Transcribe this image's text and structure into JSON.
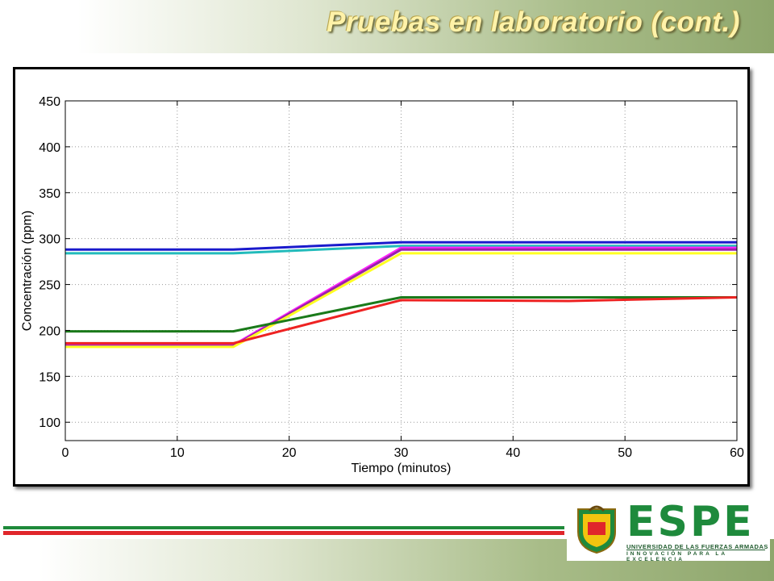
{
  "slide": {
    "title": "Pruebas en laboratorio (cont.)"
  },
  "logo": {
    "wordmark": "ESPE",
    "subtitle": "UNIVERSIDAD DE LAS FUERZAS ARMADAS",
    "tagline": "INNOVACIÓN PARA LA EXCELENCIA",
    "colors": {
      "green": "#1e8a3c",
      "red": "#e0262b"
    }
  },
  "chart_data": {
    "type": "line",
    "title": "",
    "xlabel": "Tiempo (minutos)",
    "ylabel": "Concentración (ppm)",
    "xlim": [
      0,
      60
    ],
    "ylim": [
      80,
      450
    ],
    "xticks": [
      0,
      10,
      20,
      30,
      40,
      50,
      60
    ],
    "yticks": [
      100,
      150,
      200,
      250,
      300,
      350,
      400,
      450
    ],
    "grid": true,
    "legend": "none",
    "series": [
      {
        "color": "#1a1acc",
        "x": [
          0,
          15,
          30,
          60
        ],
        "y": [
          288,
          288,
          296,
          296
        ]
      },
      {
        "color": "#22bbbb",
        "x": [
          0,
          15,
          30,
          60
        ],
        "y": [
          284,
          284,
          292,
          292
        ]
      },
      {
        "color": "#ff22ff",
        "x": [
          0,
          15,
          30,
          60
        ],
        "y": [
          184,
          184,
          290,
          290
        ]
      },
      {
        "color": "#9922aa",
        "x": [
          0,
          15,
          30,
          60
        ],
        "y": [
          183,
          183,
          288,
          288
        ]
      },
      {
        "color": "#ffff22",
        "x": [
          0,
          15,
          30,
          60
        ],
        "y": [
          182,
          182,
          284,
          284
        ]
      },
      {
        "color": "#1a7a1a",
        "x": [
          0,
          15,
          30,
          60
        ],
        "y": [
          199,
          199,
          236,
          236
        ]
      },
      {
        "color": "#ee2222",
        "x": [
          0,
          15,
          30,
          45,
          60
        ],
        "y": [
          186,
          186,
          233,
          232,
          236
        ]
      }
    ]
  }
}
